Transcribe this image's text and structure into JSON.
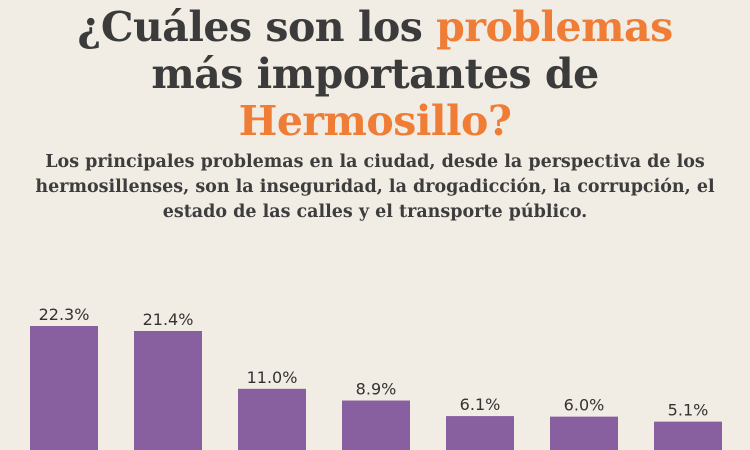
{
  "header": {
    "title_part1": "¿Cuáles son los ",
    "title_accent1": "problemas",
    "title_part2": "más importantes de",
    "title_accent2": "Hermosillo?",
    "subtitle": "Los principales problemas en la ciudad, desde la perspectiva de los hermosillenses, son la inseguridad, la drogadicción, la corrupción, el estado de las calles y el transporte público."
  },
  "colors": {
    "background": "#f1ece4",
    "title_text": "#3b3b3b",
    "accent": "#ef7d36",
    "bar": "#8860a0"
  },
  "chart_data": {
    "type": "bar",
    "categories": [
      "",
      "",
      "",
      "",
      "",
      "",
      ""
    ],
    "values": [
      22.3,
      21.4,
      11.0,
      8.9,
      6.1,
      6.0,
      5.1
    ],
    "value_labels": [
      "22.3%",
      "21.4%",
      "11.0%",
      "8.9%",
      "6.1%",
      "6.0%",
      "5.1%"
    ],
    "unit": "%",
    "ylim": [
      0,
      22.3
    ],
    "grid": false,
    "legend": "none"
  }
}
